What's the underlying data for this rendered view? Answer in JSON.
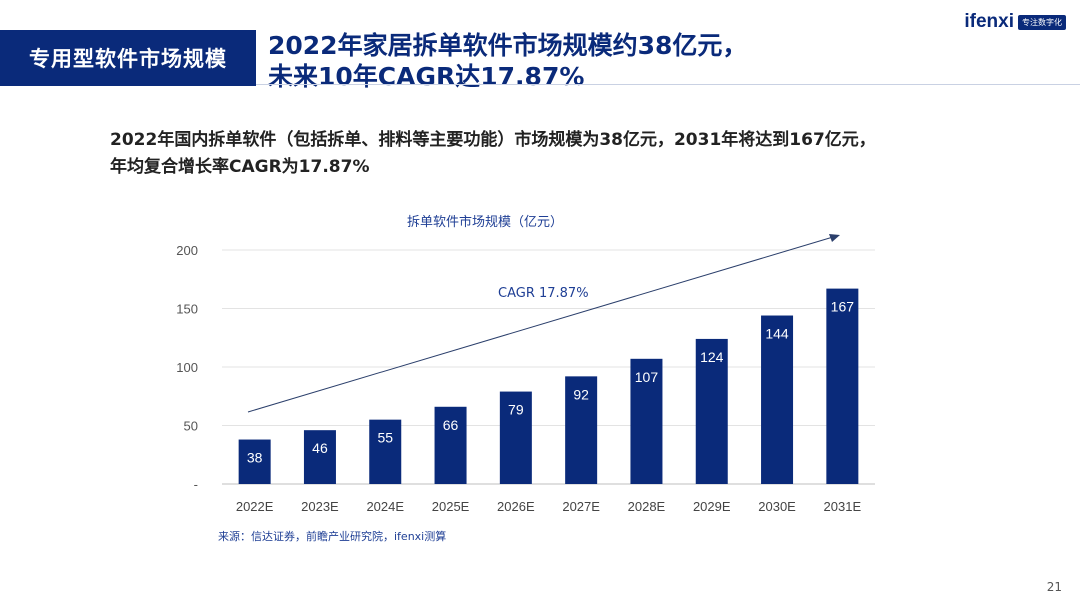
{
  "header": {
    "section_tag": "专用型软件市场规模",
    "title_line1": "2022年家居拆单软件市场规模约38亿元，",
    "title_line2": "未来10年CAGR达17.87%"
  },
  "logo": {
    "brand": "ifenxi",
    "tagline": "专注数字化"
  },
  "summary": {
    "line1": "2022年国内拆单软件（包括拆单、排料等主要功能）市场规模为38亿元，2031年将达到167亿元，",
    "line2": "年均复合增长率CAGR为17.87%"
  },
  "chart_data": {
    "type": "bar",
    "title": "拆单软件市场规模（亿元）",
    "categories": [
      "2022E",
      "2023E",
      "2024E",
      "2025E",
      "2026E",
      "2027E",
      "2028E",
      "2029E",
      "2030E",
      "2031E"
    ],
    "values": [
      38,
      46,
      55,
      66,
      79,
      92,
      107,
      124,
      144,
      167
    ],
    "yticks": [
      "-",
      "50",
      "100",
      "150",
      "200"
    ],
    "ylim": [
      0,
      200
    ],
    "grid": true,
    "annotation": "CAGR 17.87%",
    "bar_color": "#0a2a7a",
    "label_color": "#ffffff"
  },
  "source": "来源：信达证券，前瞻产业研究院，ifenxi测算",
  "page_number": "21"
}
